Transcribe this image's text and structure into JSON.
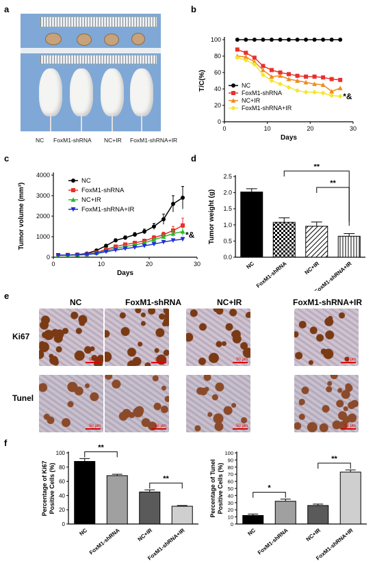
{
  "panels": {
    "a": "a",
    "b": "b",
    "c": "c",
    "d": "d",
    "e": "e",
    "f": "f"
  },
  "panel_a": {
    "groups": [
      "NC",
      "FoxM1-shRNA",
      "NC+IR",
      "FoxM1-shRNA+IR"
    ]
  },
  "panel_e": {
    "columns": [
      "NC",
      "FoxM1-shRNA",
      "NC+IR",
      "FoxM1-shRNA+IR"
    ],
    "rows": [
      "Ki67",
      "Tunel"
    ],
    "scale_label": "50 μm",
    "colors": {
      "ki67_bg": "#cfc3cf",
      "ki67_stain": "#7a3a14",
      "tunel_bg": "#c8c0cc",
      "tunel_stain": "#8b4a2a"
    },
    "stain_level": {
      "Ki67": [
        0.9,
        0.65,
        0.45,
        0.25
      ],
      "Tunel": [
        0.1,
        0.3,
        0.25,
        0.7
      ]
    }
  },
  "chart_data": [
    {
      "id": "b",
      "type": "line",
      "xlabel": "Days",
      "ylabel": "T/C(%)",
      "xlim": [
        0,
        30
      ],
      "ylim": [
        0,
        100
      ],
      "xticks": [
        0,
        10,
        20,
        30
      ],
      "yticks": [
        0,
        20,
        40,
        60,
        80,
        100
      ],
      "legend": "left",
      "annotation": "*&",
      "x": [
        3,
        5,
        7,
        9,
        11,
        13,
        15,
        17,
        19,
        21,
        23,
        25,
        27
      ],
      "series": [
        {
          "name": "NC",
          "color": "#000000",
          "marker": "circle",
          "values": [
            100,
            100,
            100,
            100,
            100,
            100,
            100,
            100,
            100,
            100,
            100,
            100,
            100
          ]
        },
        {
          "name": "FoxM1-shRNA",
          "color": "#e8302c",
          "marker": "square",
          "values": [
            88,
            84,
            78,
            68,
            63,
            60,
            58,
            56,
            55,
            55,
            54,
            52,
            51
          ]
        },
        {
          "name": "NC+IR",
          "color": "#f08a1c",
          "marker": "triangle",
          "values": [
            80,
            79,
            73,
            63,
            55,
            56,
            52,
            50,
            48,
            46,
            45,
            37,
            41
          ]
        },
        {
          "name": "FoxM1-shRNA+IR",
          "color": "#f5e62c",
          "marker": "diamond",
          "values": [
            78,
            75,
            70,
            57,
            50,
            46,
            42,
            38,
            36,
            36,
            35,
            32,
            31
          ]
        }
      ]
    },
    {
      "id": "c",
      "type": "line",
      "xlabel": "Days",
      "ylabel": "Tumor volume (mm³)",
      "xlim": [
        0,
        30
      ],
      "ylim": [
        0,
        4000
      ],
      "xticks": [
        0,
        10,
        20,
        30
      ],
      "yticks": [
        0,
        1000,
        2000,
        3000,
        4000
      ],
      "legend": "top-left",
      "annotation": "*&",
      "x": [
        1,
        3,
        5,
        7,
        9,
        11,
        13,
        15,
        17,
        19,
        21,
        23,
        25,
        27
      ],
      "series": [
        {
          "name": "NC",
          "color": "#000000",
          "marker": "circle",
          "values": [
            100,
            110,
            130,
            180,
            330,
            560,
            820,
            950,
            1100,
            1250,
            1500,
            1850,
            2600,
            2900
          ],
          "errors": [
            10,
            10,
            15,
            20,
            30,
            60,
            80,
            90,
            100,
            120,
            150,
            250,
            400,
            550
          ]
        },
        {
          "name": "FoxM1-shRNA",
          "color": "#e8302c",
          "marker": "square",
          "values": [
            100,
            110,
            120,
            150,
            230,
            380,
            520,
            620,
            700,
            800,
            950,
            1100,
            1300,
            1550
          ],
          "errors": [
            10,
            10,
            12,
            15,
            25,
            40,
            50,
            60,
            70,
            80,
            100,
            120,
            200,
            350
          ]
        },
        {
          "name": "NC+IR",
          "color": "#2db82d",
          "marker": "triangle",
          "values": [
            100,
            105,
            115,
            140,
            200,
            330,
            430,
            520,
            600,
            700,
            850,
            1000,
            1150,
            1250
          ],
          "errors": [
            10,
            10,
            10,
            12,
            20,
            30,
            40,
            50,
            60,
            70,
            80,
            100,
            150,
            200
          ]
        },
        {
          "name": "FoxM1-shRNA+IR",
          "color": "#1f2fd6",
          "marker": "triangle-down",
          "values": [
            100,
            100,
            110,
            130,
            180,
            270,
            350,
            420,
            480,
            560,
            640,
            740,
            820,
            880
          ],
          "errors": [
            10,
            10,
            10,
            12,
            15,
            25,
            30,
            35,
            40,
            50,
            60,
            70,
            80,
            90
          ]
        }
      ]
    },
    {
      "id": "d",
      "type": "bar",
      "ylabel": "Tumor weight (g)",
      "ylim": [
        0,
        2.5
      ],
      "yticks": [
        0.0,
        0.5,
        1.0,
        1.5,
        2.0,
        2.5
      ],
      "yticklabels": [
        "0.0",
        "0.5",
        "1.0",
        "1.5",
        "2.0",
        "2.5"
      ],
      "categories": [
        "NC",
        "FoxM1-shRNA",
        "NC+IR",
        "FoxM1-shRNA+IR"
      ],
      "values": [
        2.02,
        1.08,
        0.96,
        0.65
      ],
      "errors": [
        0.1,
        0.14,
        0.13,
        0.08
      ],
      "patterns": [
        "solid",
        "checker",
        "hatch",
        "vlines"
      ],
      "significance": [
        {
          "from": 1,
          "to": 3,
          "label": "**",
          "level": 1
        },
        {
          "from": 2,
          "to": 3,
          "label": "**",
          "level": 0
        }
      ]
    },
    {
      "id": "f1",
      "type": "bar",
      "ylabel_lines": [
        "Percentage of Ki67",
        "Positive Cells (%)"
      ],
      "ylim": [
        0,
        100
      ],
      "yticks": [
        0,
        20,
        40,
        60,
        80,
        100
      ],
      "categories": [
        "NC",
        "FoxM1-shRNA",
        "NC+IR",
        "FoxM1-shRNA+IR"
      ],
      "values": [
        88,
        68,
        45,
        25
      ],
      "errors": [
        4,
        2,
        3,
        1
      ],
      "colors": [
        "#000000",
        "#a0a0a0",
        "#5a5a5a",
        "#cfcfcf"
      ],
      "significance": [
        {
          "from": 0,
          "to": 1,
          "label": "**"
        },
        {
          "from": 2,
          "to": 3,
          "label": "**"
        }
      ]
    },
    {
      "id": "f2",
      "type": "bar",
      "ylabel_lines": [
        "Percentage of Tunel",
        "Positive Cells (%)"
      ],
      "ylim": [
        0,
        100
      ],
      "yticks": [
        0,
        10,
        20,
        30,
        40,
        50,
        60,
        70,
        80,
        90,
        100
      ],
      "categories": [
        "NC",
        "FoxM1-shRNA",
        "NC+IR",
        "FoxM1-shRNA+IR"
      ],
      "values": [
        12,
        32,
        26,
        73
      ],
      "errors": [
        2,
        3,
        2,
        3
      ],
      "colors": [
        "#000000",
        "#a0a0a0",
        "#5a5a5a",
        "#cfcfcf"
      ],
      "significance": [
        {
          "from": 0,
          "to": 1,
          "label": "*"
        },
        {
          "from": 2,
          "to": 3,
          "label": "**"
        }
      ]
    }
  ]
}
